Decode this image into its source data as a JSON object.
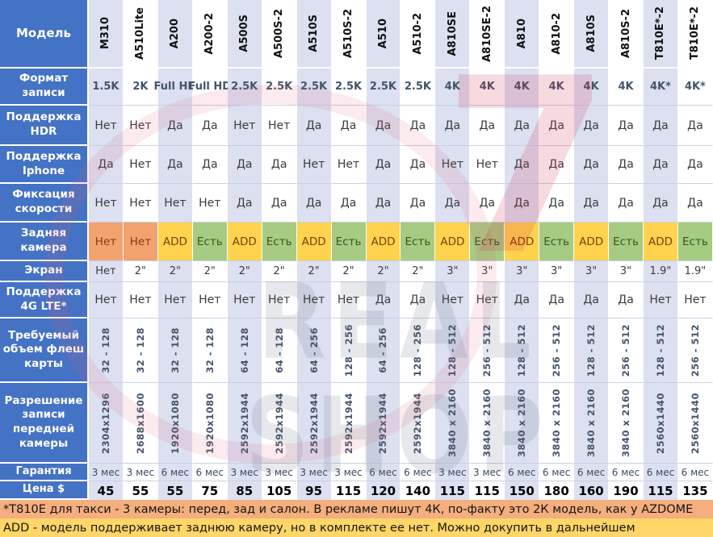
{
  "table": {
    "corner_label": "Модель",
    "models": [
      "M310",
      "A510Lite",
      "A200",
      "A200-2",
      "A500S",
      "A500S-2",
      "A510S",
      "A510S-2",
      "A510",
      "A510-2",
      "A810SE",
      "A810SE-2",
      "A810",
      "A810-2",
      "A810S",
      "A810S-2",
      "T810E*-2",
      "T810E*-2"
    ],
    "rows": [
      {
        "key": "format",
        "label": "Формат записи",
        "values": [
          "1.5K",
          "2K",
          "Full HD",
          "Full HD",
          "2.5K",
          "2.5K",
          "2.5K",
          "2.5K",
          "2.5K",
          "2.5K",
          "4K",
          "4K",
          "4K",
          "4K",
          "4K",
          "4K",
          "4K*",
          "4K*"
        ]
      },
      {
        "key": "hdr",
        "label": "Поддержка HDR",
        "values": [
          "Нет",
          "Нет",
          "Да",
          "Да",
          "Нет",
          "Нет",
          "Да",
          "Да",
          "Да",
          "Да",
          "Да",
          "Да",
          "Да",
          "Да",
          "Да",
          "Да",
          "Да",
          "Да"
        ]
      },
      {
        "key": "iphone",
        "label": "Поддержка Iphone",
        "values": [
          "Да",
          "Нет",
          "Да",
          "Да",
          "Да",
          "Да",
          "Нет",
          "Нет",
          "Да",
          "Да",
          "Нет",
          "Нет",
          "Да",
          "Да",
          "Да",
          "Да",
          "Да",
          "Да"
        ]
      },
      {
        "key": "speed",
        "label": "Фиксация скорости",
        "values": [
          "Нет",
          "Нет",
          "Нет",
          "Нет",
          "Да",
          "Да",
          "Да",
          "Да",
          "Да",
          "Да",
          "Да",
          "Да",
          "Да",
          "Да",
          "Да",
          "Да",
          "Да",
          "Да"
        ]
      },
      {
        "key": "rear",
        "label": "Задняя камера",
        "values": [
          "Нет",
          "Нет",
          "ADD",
          "Есть",
          "ADD",
          "Есть",
          "ADD",
          "Есть",
          "ADD",
          "Есть",
          "ADD",
          "Есть",
          "ADD",
          "Есть",
          "ADD",
          "Есть",
          "ADD",
          "Есть"
        ]
      },
      {
        "key": "screen",
        "label": "Экран",
        "values": [
          "Нет",
          "2\"",
          "2\"",
          "2\"",
          "2\"",
          "2\"",
          "2\"",
          "2\"",
          "2\"",
          "2\"",
          "3\"",
          "3\"",
          "3\"",
          "3\"",
          "3\"",
          "3\"",
          "1.9\"",
          "1.9\""
        ]
      },
      {
        "key": "lte",
        "label": "Поддержка 4G LTE*",
        "values": [
          "Нет",
          "Нет",
          "Нет",
          "Нет",
          "Нет",
          "Нет",
          "Нет",
          "Нет",
          "Да",
          "Да",
          "Нет",
          "Нет",
          "Да",
          "Да",
          "Да",
          "Да",
          "Нет",
          "Нет"
        ]
      },
      {
        "key": "flash",
        "label": "Требуемый объем флеш карты",
        "values": [
          "32 - 128",
          "32 - 128",
          "32 - 128",
          "32 - 128",
          "64 - 128",
          "64 - 128",
          "64 - 256",
          "128 - 256",
          "64 - 256",
          "128 - 256",
          "128 - 512",
          "256 - 512",
          "128 - 512",
          "256 - 512",
          "128 - 512",
          "256 - 512",
          "128 - 512",
          "256 - 512"
        ]
      },
      {
        "key": "resolution",
        "label": "Разрешение записи передней камеры",
        "values": [
          "2304x1296",
          "2688x1600",
          "1920x1080",
          "1920x1080",
          "2592x1944",
          "2592x1944",
          "2592x1944",
          "2592x1944",
          "2592x1944",
          "2592x1944",
          "3840 x 2160",
          "3840 x 2160",
          "3840 x 2160",
          "3840 x 2160",
          "3840 x 2160",
          "3840 x 2160",
          "2560x1440",
          "2560x1440"
        ]
      },
      {
        "key": "warranty",
        "label": "Гарантия",
        "values": [
          "3 мес",
          "3 мес",
          "6 мес",
          "6 мес",
          "3 мес",
          "3 мес",
          "3 мес",
          "3 мес",
          "6 мес",
          "6 мес",
          "3 мес",
          "3 мес",
          "6 мес",
          "6 мес",
          "6 мес",
          "6 мес",
          "6 мес",
          "6 мес"
        ]
      },
      {
        "key": "price",
        "label": "Цена $",
        "values": [
          "45",
          "55",
          "55",
          "75",
          "85",
          "105",
          "95",
          "115",
          "120",
          "140",
          "115",
          "115",
          "150",
          "180",
          "160",
          "190",
          "115",
          "135"
        ]
      }
    ]
  },
  "footnotes": [
    "*Т810Е для такси - 3 камеры: перед, зад и салон. В рекламе пишут 4К, по-факту это 2К модель, как у AZDOME",
    "ADD - модель поддерживает заднюю камеру, но в  комплекте ее нет. Можно докупить в дальнейшем"
  ],
  "watermark": {
    "seven": "7",
    "shop_text": "REAL SHOP"
  },
  "colors": {
    "header_blue": "#4472C4",
    "column_stripe": "#DCE0F1",
    "rear_no_bg": "#F2A26E",
    "rear_add_bg": "#FFD34D",
    "rear_yes_bg": "#A6CB82",
    "note1_bg": "#F5AE7E",
    "note2_bg": "#FFD667",
    "watermark_pink": "#D6284A"
  }
}
